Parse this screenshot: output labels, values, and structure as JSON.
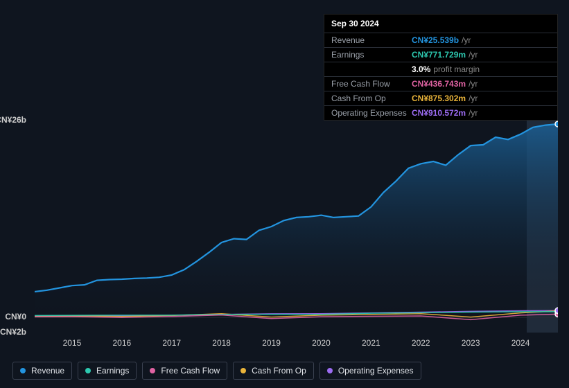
{
  "chart": {
    "type": "area-line",
    "background_color": "#0f151f",
    "plot_background": "#0f151f",
    "grid_color": "#2a2f38",
    "y_axis": {
      "ticks": [
        {
          "label": "CN¥26b",
          "value": 26
        },
        {
          "label": "CN¥0",
          "value": 0
        },
        {
          "label": "-CN¥2b",
          "value": -2
        }
      ],
      "min": -2,
      "max": 26,
      "label_fontsize": 12,
      "label_color": "#cccccc"
    },
    "x_axis": {
      "years": [
        "2015",
        "2016",
        "2017",
        "2018",
        "2019",
        "2020",
        "2021",
        "2022",
        "2023",
        "2024"
      ],
      "start_year": 2014.25,
      "end_year": 2024.75,
      "label_fontsize": 12,
      "label_color": "#cccccc"
    },
    "highlight": {
      "from_year": 2024.12,
      "to_year": 2024.75,
      "fill": "rgba(80,100,130,0.28)"
    },
    "series": {
      "revenue": {
        "name": "Revenue",
        "color": "#2394df",
        "fill_from": "#1b5f94",
        "fill_to": "#0f151f",
        "fill_opacity_top": 0.85,
        "line_width": 2.2,
        "points": [
          [
            2014.25,
            3.4
          ],
          [
            2014.5,
            3.6
          ],
          [
            2014.75,
            3.9
          ],
          [
            2015.0,
            4.2
          ],
          [
            2015.25,
            4.3
          ],
          [
            2015.5,
            4.9
          ],
          [
            2015.75,
            5.0
          ],
          [
            2016.0,
            5.05
          ],
          [
            2016.25,
            5.15
          ],
          [
            2016.5,
            5.2
          ],
          [
            2016.75,
            5.3
          ],
          [
            2017.0,
            5.6
          ],
          [
            2017.25,
            6.3
          ],
          [
            2017.5,
            7.4
          ],
          [
            2017.75,
            8.6
          ],
          [
            2018.0,
            9.9
          ],
          [
            2018.25,
            10.4
          ],
          [
            2018.5,
            10.3
          ],
          [
            2018.75,
            11.5
          ],
          [
            2019.0,
            12.0
          ],
          [
            2019.25,
            12.8
          ],
          [
            2019.5,
            13.2
          ],
          [
            2019.75,
            13.3
          ],
          [
            2020.0,
            13.5
          ],
          [
            2020.25,
            13.2
          ],
          [
            2020.5,
            13.3
          ],
          [
            2020.75,
            13.4
          ],
          [
            2021.0,
            14.6
          ],
          [
            2021.25,
            16.5
          ],
          [
            2021.5,
            18.0
          ],
          [
            2021.75,
            19.7
          ],
          [
            2022.0,
            20.3
          ],
          [
            2022.25,
            20.6
          ],
          [
            2022.5,
            20.1
          ],
          [
            2022.75,
            21.5
          ],
          [
            2023.0,
            22.7
          ],
          [
            2023.25,
            22.8
          ],
          [
            2023.5,
            23.8
          ],
          [
            2023.75,
            23.5
          ],
          [
            2024.0,
            24.2
          ],
          [
            2024.25,
            25.1
          ],
          [
            2024.5,
            25.4
          ],
          [
            2024.75,
            25.539
          ]
        ]
      },
      "earnings": {
        "name": "Earnings",
        "color": "#2dc9b0",
        "line_width": 1.5,
        "points": [
          [
            2014.25,
            0.25
          ],
          [
            2015,
            0.28
          ],
          [
            2016,
            0.3
          ],
          [
            2017,
            0.3
          ],
          [
            2018,
            0.4
          ],
          [
            2019,
            0.42
          ],
          [
            2020,
            0.4
          ],
          [
            2021,
            0.55
          ],
          [
            2022,
            0.62
          ],
          [
            2023,
            0.7
          ],
          [
            2024,
            0.75
          ],
          [
            2024.75,
            0.772
          ]
        ]
      },
      "free_cash_flow": {
        "name": "Free Cash Flow",
        "color": "#e163a3",
        "line_width": 1.5,
        "points": [
          [
            2014.25,
            0.08
          ],
          [
            2015,
            0.1
          ],
          [
            2016,
            0.0
          ],
          [
            2017,
            0.12
          ],
          [
            2018,
            0.32
          ],
          [
            2019,
            -0.15
          ],
          [
            2020,
            0.1
          ],
          [
            2021,
            0.15
          ],
          [
            2022,
            0.2
          ],
          [
            2023,
            -0.3
          ],
          [
            2024,
            0.3
          ],
          [
            2024.75,
            0.437
          ]
        ]
      },
      "cash_from_op": {
        "name": "Cash From Op",
        "color": "#eab43a",
        "line_width": 1.5,
        "points": [
          [
            2014.25,
            0.2
          ],
          [
            2015,
            0.22
          ],
          [
            2016,
            0.12
          ],
          [
            2017,
            0.25
          ],
          [
            2018,
            0.5
          ],
          [
            2019,
            0.05
          ],
          [
            2020,
            0.3
          ],
          [
            2021,
            0.4
          ],
          [
            2022,
            0.5
          ],
          [
            2023,
            0.05
          ],
          [
            2024,
            0.6
          ],
          [
            2024.75,
            0.875
          ]
        ]
      },
      "operating_expenses": {
        "name": "Operating Expenses",
        "color": "#9c6cf2",
        "line_width": 1.5,
        "points": [
          [
            2014.25,
            0.18
          ],
          [
            2015,
            0.2
          ],
          [
            2016,
            0.22
          ],
          [
            2017,
            0.28
          ],
          [
            2018,
            0.4
          ],
          [
            2019,
            0.48
          ],
          [
            2020,
            0.5
          ],
          [
            2021,
            0.6
          ],
          [
            2022,
            0.7
          ],
          [
            2023,
            0.8
          ],
          [
            2024,
            0.88
          ],
          [
            2024.75,
            0.911
          ]
        ]
      }
    },
    "marker": {
      "x": 2024.75,
      "radius": 4
    },
    "legend": {
      "items": [
        {
          "key": "revenue",
          "label": "Revenue"
        },
        {
          "key": "earnings",
          "label": "Earnings"
        },
        {
          "key": "free_cash_flow",
          "label": "Free Cash Flow"
        },
        {
          "key": "cash_from_op",
          "label": "Cash From Op"
        },
        {
          "key": "operating_expenses",
          "label": "Operating Expenses"
        }
      ],
      "border_color": "#3a4150",
      "text_color": "#e0e3e8",
      "fontsize": 12
    }
  },
  "tooltip": {
    "date": "Sep 30 2024",
    "rows": [
      {
        "label": "Revenue",
        "value": "CN¥25.539b",
        "suffix": "/yr",
        "color": "#2394df"
      },
      {
        "label": "Earnings",
        "value": "CN¥771.729m",
        "suffix": "/yr",
        "color": "#2dc9b0"
      },
      {
        "label": "",
        "value": "3.0%",
        "suffix": "profit margin",
        "color": "#ffffff"
      },
      {
        "label": "Free Cash Flow",
        "value": "CN¥436.743m",
        "suffix": "/yr",
        "color": "#e163a3"
      },
      {
        "label": "Cash From Op",
        "value": "CN¥875.302m",
        "suffix": "/yr",
        "color": "#eab43a"
      },
      {
        "label": "Operating Expenses",
        "value": "CN¥910.572m",
        "suffix": "/yr",
        "color": "#9c6cf2"
      }
    ],
    "label_color": "#9aa0a9",
    "suffix_color": "#888888",
    "border_color": "#2a2f38"
  }
}
